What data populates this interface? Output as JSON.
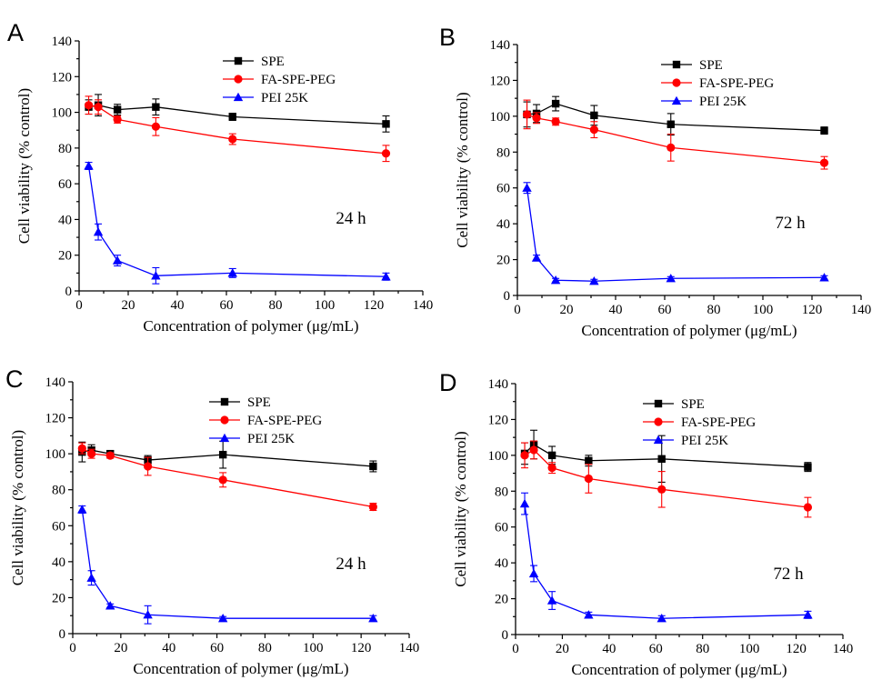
{
  "figure": {
    "series_colors": {
      "SPE": "#000000",
      "FA-SPE-PEG": "#ff0000",
      "PEI 25K": "#0000ff"
    }
  },
  "chart_data": [
    {
      "type": "line",
      "panel": "A",
      "annotation": "24 h",
      "xlabel": "Concentration of polymer (μg/mL)",
      "ylabel": "Cell viability (% control)",
      "xlim": [
        0,
        140
      ],
      "ylim": [
        0,
        140
      ],
      "xticks": [
        0,
        20,
        40,
        60,
        80,
        100,
        120,
        140
      ],
      "yticks": [
        0,
        20,
        40,
        60,
        80,
        100,
        120,
        140
      ],
      "legend_position": "top-right",
      "x": [
        3.9,
        7.8,
        15.6,
        31.25,
        62.5,
        125
      ],
      "series": [
        {
          "name": "SPE",
          "color": "#000000",
          "marker": "square",
          "values": [
            103,
            104,
            101.5,
            103,
            97.5,
            93.5
          ],
          "errors": [
            4,
            6,
            3,
            4.5,
            2,
            4.5
          ]
        },
        {
          "name": "FA-SPE-PEG",
          "color": "#ff0000",
          "marker": "circle",
          "values": [
            104,
            103,
            96,
            92,
            85,
            77
          ],
          "errors": [
            5,
            4,
            2,
            5,
            3,
            4.5
          ]
        },
        {
          "name": "PEI 25K",
          "color": "#0000ff",
          "marker": "triangle",
          "values": [
            70,
            33,
            17,
            8.5,
            10,
            8
          ],
          "errors": [
            2,
            4.5,
            3,
            4.5,
            2.5,
            2
          ]
        }
      ]
    },
    {
      "type": "line",
      "panel": "B",
      "annotation": "72 h",
      "xlabel": "Concentration of polymer (μg/mL)",
      "ylabel": "Cell viability (% control)",
      "xlim": [
        0,
        140
      ],
      "ylim": [
        0,
        140
      ],
      "xticks": [
        0,
        20,
        40,
        60,
        80,
        100,
        120,
        140
      ],
      "yticks": [
        0,
        20,
        40,
        60,
        80,
        100,
        120,
        140
      ],
      "legend_position": "top-right",
      "x": [
        3.9,
        7.8,
        15.6,
        31.25,
        62.5,
        125
      ],
      "series": [
        {
          "name": "SPE",
          "color": "#000000",
          "marker": "square",
          "values": [
            101,
            101.5,
            107,
            100.5,
            95.5,
            92
          ],
          "errors": [
            7,
            5,
            4,
            5.5,
            6,
            2
          ]
        },
        {
          "name": "FA-SPE-PEG",
          "color": "#ff0000",
          "marker": "circle",
          "values": [
            101,
            99,
            97,
            92.5,
            82.5,
            74
          ],
          "errors": [
            8,
            3,
            2,
            4.5,
            7.5,
            3.5
          ]
        },
        {
          "name": "PEI 25K",
          "color": "#0000ff",
          "marker": "triangle",
          "values": [
            60,
            21,
            8.5,
            8,
            9.5,
            10
          ],
          "errors": [
            3,
            1.5,
            1,
            1,
            1,
            1
          ]
        }
      ]
    },
    {
      "type": "line",
      "panel": "C",
      "annotation": "24 h",
      "xlabel": "Concentration of polymer (μg/mL)",
      "ylabel": "Cell viability (% control)",
      "xlim": [
        0,
        140
      ],
      "ylim": [
        0,
        140
      ],
      "xticks": [
        0,
        20,
        40,
        60,
        80,
        100,
        120,
        140
      ],
      "yticks": [
        0,
        20,
        40,
        60,
        80,
        100,
        120,
        140
      ],
      "legend_position": "top-right",
      "x": [
        3.9,
        7.8,
        15.6,
        31.25,
        62.5,
        125
      ],
      "series": [
        {
          "name": "SPE",
          "color": "#000000",
          "marker": "square",
          "values": [
            101,
            102,
            100,
            96.5,
            99.5,
            93
          ],
          "errors": [
            5.5,
            3,
            1.5,
            2.5,
            7.5,
            3
          ]
        },
        {
          "name": "FA-SPE-PEG",
          "color": "#ff0000",
          "marker": "circle",
          "values": [
            103,
            100,
            99,
            93,
            85.5,
            70.5
          ],
          "errors": [
            3,
            2.5,
            1.5,
            5,
            4,
            2
          ]
        },
        {
          "name": "PEI 25K",
          "color": "#0000ff",
          "marker": "triangle",
          "values": [
            69,
            31,
            15.5,
            10.5,
            8.5,
            8.5
          ],
          "errors": [
            2,
            4,
            1,
            5,
            1,
            1.5
          ]
        }
      ]
    },
    {
      "type": "line",
      "panel": "D",
      "annotation": "72 h",
      "xlabel": "Concentration of polymer (μg/mL)",
      "ylabel": "Cell viability (% control)",
      "xlim": [
        0,
        140
      ],
      "ylim": [
        0,
        140
      ],
      "xticks": [
        0,
        20,
        40,
        60,
        80,
        100,
        120,
        140
      ],
      "yticks": [
        0,
        20,
        40,
        60,
        80,
        100,
        120,
        140
      ],
      "legend_position": "top-right",
      "x": [
        3.9,
        7.8,
        15.6,
        31.25,
        62.5,
        125
      ],
      "series": [
        {
          "name": "SPE",
          "color": "#000000",
          "marker": "square",
          "values": [
            101,
            106,
            100,
            97,
            98,
            93.5
          ],
          "errors": [
            6,
            8,
            5,
            3,
            13,
            2.5
          ]
        },
        {
          "name": "FA-SPE-PEG",
          "color": "#ff0000",
          "marker": "circle",
          "values": [
            100,
            103,
            93,
            87,
            81,
            71
          ],
          "errors": [
            7,
            5,
            3,
            8,
            10,
            5.5
          ]
        },
        {
          "name": "PEI 25K",
          "color": "#0000ff",
          "marker": "triangle",
          "values": [
            73,
            34,
            19,
            11,
            9,
            11
          ],
          "errors": [
            6,
            4.5,
            5,
            1.5,
            1.5,
            2
          ]
        }
      ]
    }
  ]
}
